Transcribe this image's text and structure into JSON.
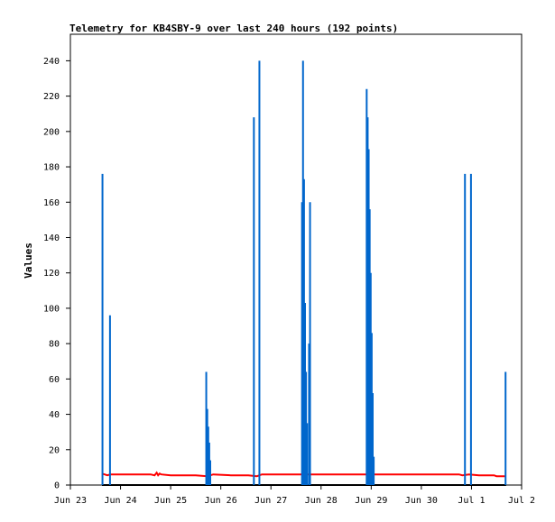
{
  "chart_data": {
    "type": "line",
    "title": "Telemetry for KB4SBY-9 over last 240 hours (192 points)",
    "xlabel": "",
    "ylabel": "Values",
    "xlim": [
      0,
      9
    ],
    "ylim": [
      0,
      255
    ],
    "x_ticks": [
      {
        "x": 0,
        "label": "Jun 23"
      },
      {
        "x": 1,
        "label": "Jun 24"
      },
      {
        "x": 2,
        "label": "Jun 25"
      },
      {
        "x": 3,
        "label": "Jun 26"
      },
      {
        "x": 4,
        "label": "Jun 27"
      },
      {
        "x": 5,
        "label": "Jun 28"
      },
      {
        "x": 6,
        "label": "Jun 29"
      },
      {
        "x": 7,
        "label": "Jun 30"
      },
      {
        "x": 8,
        "label": "Jul 1"
      },
      {
        "x": 9,
        "label": "Jul 2"
      }
    ],
    "y_ticks": [
      {
        "y": 0,
        "label": "0"
      },
      {
        "y": 20,
        "label": "20"
      },
      {
        "y": 40,
        "label": "40"
      },
      {
        "y": 60,
        "label": "60"
      },
      {
        "y": 80,
        "label": "80"
      },
      {
        "y": 100,
        "label": "100"
      },
      {
        "y": 120,
        "label": "120"
      },
      {
        "y": 140,
        "label": "140"
      },
      {
        "y": 160,
        "label": "160"
      },
      {
        "y": 180,
        "label": "180"
      },
      {
        "y": 200,
        "label": "200"
      },
      {
        "y": 220,
        "label": "220"
      },
      {
        "y": 240,
        "label": "240"
      }
    ],
    "grid": false,
    "series": [
      {
        "color": "#000000",
        "style": "line",
        "points": [
          [
            0.63,
            0
          ],
          [
            8.69,
            0
          ]
        ]
      },
      {
        "color": "#ff0000",
        "style": "line",
        "points": [
          [
            0.63,
            6.5
          ],
          [
            0.74,
            5.5
          ],
          [
            0.79,
            6
          ],
          [
            1.0,
            6
          ],
          [
            1.3,
            6
          ],
          [
            1.6,
            6
          ],
          [
            1.68,
            5.5
          ],
          [
            1.72,
            7
          ],
          [
            1.75,
            5.5
          ],
          [
            1.78,
            6.5
          ],
          [
            1.81,
            6
          ],
          [
            2.0,
            5.5
          ],
          [
            2.5,
            5.5
          ],
          [
            2.73,
            5
          ],
          [
            2.85,
            6
          ],
          [
            3.2,
            5.5
          ],
          [
            3.55,
            5.5
          ],
          [
            3.72,
            5
          ],
          [
            3.82,
            6
          ],
          [
            4.0,
            6
          ],
          [
            5.0,
            6
          ],
          [
            6.0,
            6
          ],
          [
            7.0,
            6
          ],
          [
            7.75,
            6
          ],
          [
            7.82,
            5.5
          ],
          [
            7.95,
            6
          ],
          [
            8.15,
            5.5
          ],
          [
            8.45,
            5.5
          ],
          [
            8.5,
            5
          ],
          [
            8.69,
            5
          ]
        ]
      },
      {
        "color": "#0066cc",
        "style": "spikes",
        "points": [
          [
            0.64,
            176
          ],
          [
            0.79,
            96
          ],
          [
            2.71,
            64
          ],
          [
            2.73,
            43
          ],
          [
            2.75,
            33
          ],
          [
            2.77,
            24
          ],
          [
            2.79,
            14
          ],
          [
            3.66,
            208
          ],
          [
            3.77,
            240
          ],
          [
            4.62,
            160
          ],
          [
            4.64,
            240
          ],
          [
            4.66,
            173
          ],
          [
            4.68,
            103
          ],
          [
            4.7,
            64
          ],
          [
            4.72,
            35
          ],
          [
            4.76,
            80
          ],
          [
            4.78,
            160
          ],
          [
            5.91,
            224
          ],
          [
            5.93,
            208
          ],
          [
            5.95,
            190
          ],
          [
            5.97,
            156
          ],
          [
            5.99,
            120
          ],
          [
            6.01,
            86
          ],
          [
            6.03,
            52
          ],
          [
            6.05,
            16
          ],
          [
            7.87,
            176
          ],
          [
            7.99,
            176
          ],
          [
            8.68,
            64
          ]
        ]
      }
    ]
  }
}
